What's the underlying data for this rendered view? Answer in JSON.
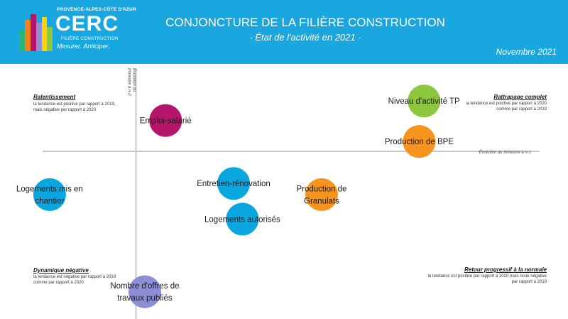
{
  "header": {
    "logo_region": "PROVENCE-ALPES-CÔTE D'AZUR",
    "logo_name": "CERC",
    "logo_sub": "FILIÈRE CONSTRUCTION",
    "logo_tagline": "Mesurer. Anticiper.",
    "title": "CONJONCTURE DE LA FILIÈRE CONSTRUCTION",
    "subtitle": "- État de l'activité en 2021 -",
    "date": "Novembre 2021",
    "bg_color": "#1aa6de"
  },
  "quadrants": {
    "top_left": {
      "title": "Ralentissement",
      "desc": [
        "la tendance est positive par rapport à 2019,",
        "mais négative par rapport à 2020"
      ]
    },
    "top_right": {
      "title": "Rattrapage complet",
      "desc": [
        "la tendance est positive par rapport à 2020",
        "comme par rapport à 2019"
      ]
    },
    "bottom_left": {
      "title": "Dynamique négative",
      "desc": [
        "la tendance est négative par rapport à 2019",
        "comme par rapport à 2020"
      ]
    },
    "bottom_right": {
      "title": "Retour progressif à la normale",
      "desc": [
        "la tendance est positive par rapport à 2020 mais reste négative",
        "par rapport à 2019"
      ]
    }
  },
  "chart_data": {
    "type": "scatter",
    "xlabel": "Évolution du trimestre à n-1",
    "ylabel": [
      "Évolution du",
      "trimestre à n-2"
    ],
    "xlim": [
      -170,
      540
    ],
    "ylim": [
      -240,
      125
    ],
    "points": [
      {
        "label": [
          "Niveau d'activité TP"
        ],
        "x": 360,
        "y": 72,
        "color": "#8dc63f"
      },
      {
        "label": [
          "Production de BPE"
        ],
        "x": 354,
        "y": 14,
        "color": "#f7941d"
      },
      {
        "label": [
          "Emploi-salarié"
        ],
        "x": 37,
        "y": 44,
        "color": "#b5166b"
      },
      {
        "label": [
          "Logements mis en",
          "chantier"
        ],
        "x": -108,
        "y": -62,
        "color": "#0aa6e0"
      },
      {
        "label": [
          "Entretien-rénovation"
        ],
        "x": 122,
        "y": -46,
        "color": "#0aa6e0"
      },
      {
        "label": [
          "Production de",
          "Granulats"
        ],
        "x": 232,
        "y": -62,
        "color": "#f7941d"
      },
      {
        "label": [
          "Logements autorisés"
        ],
        "x": 133,
        "y": -97,
        "color": "#0aa6e0"
      },
      {
        "label": [
          "Nombre d'offres de",
          "travaux publiés"
        ],
        "x": 11,
        "y": -201,
        "color": "#8c8fd6"
      }
    ]
  }
}
